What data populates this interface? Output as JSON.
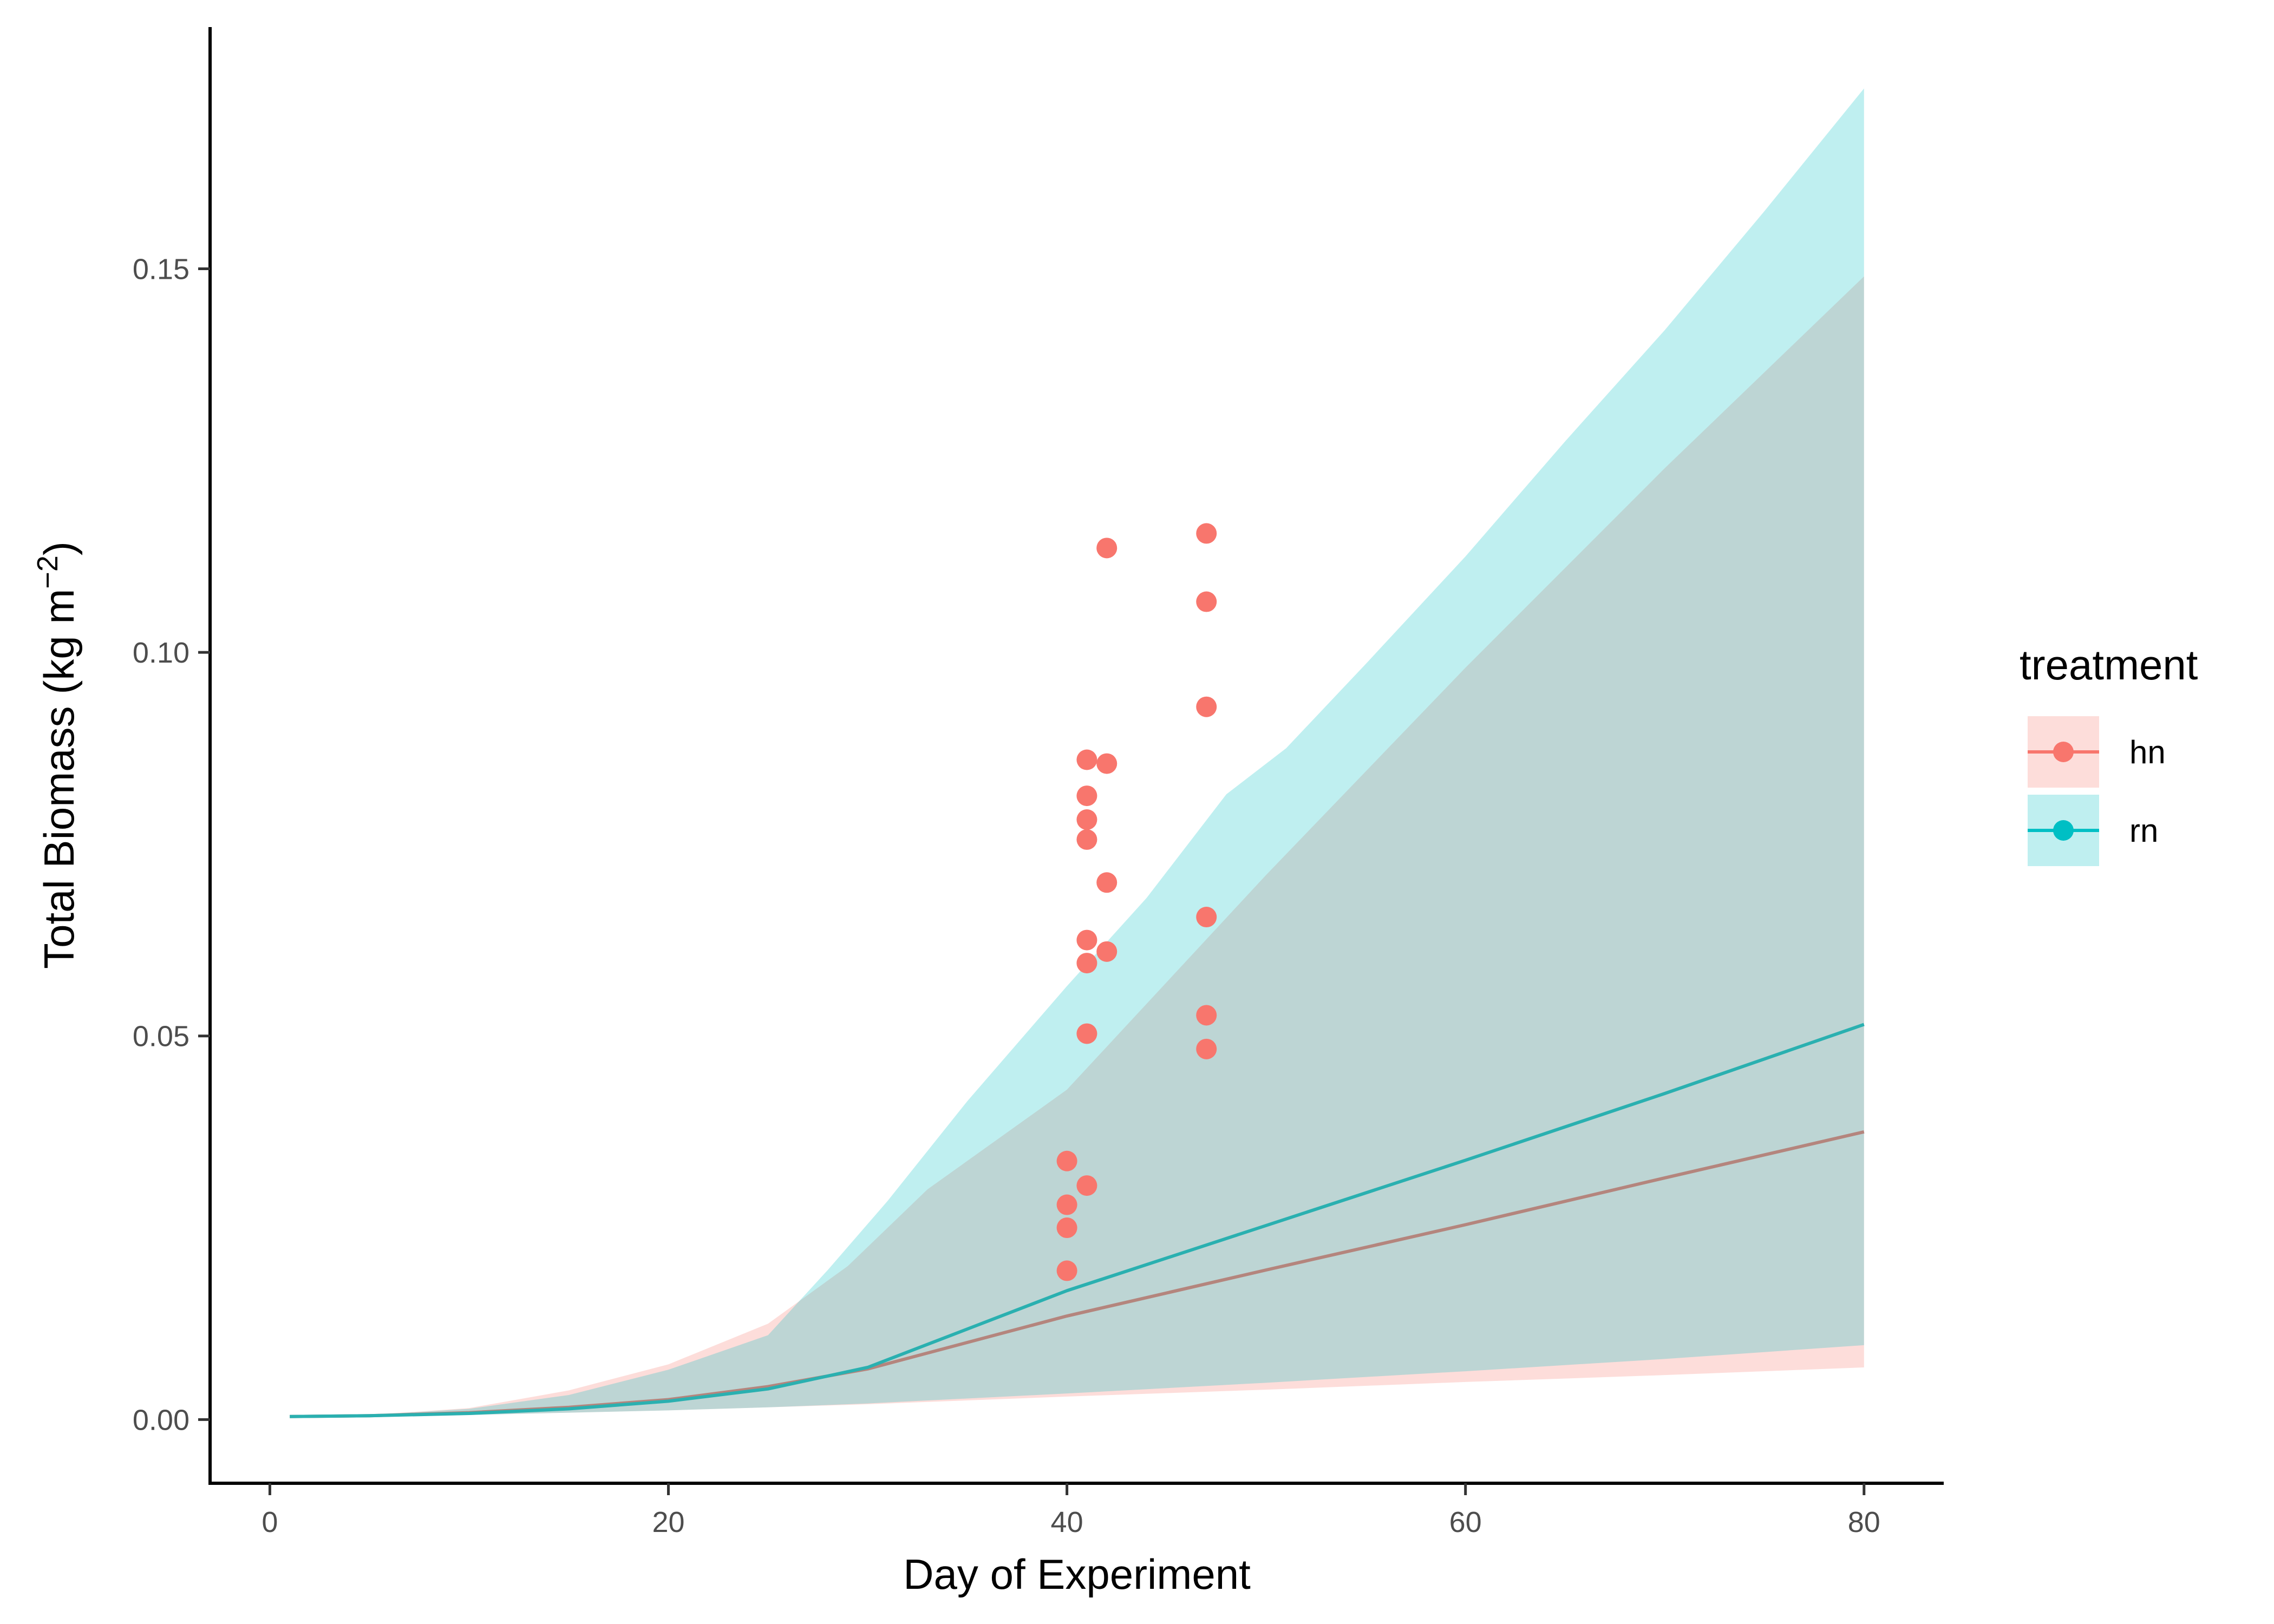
{
  "chart_data": {
    "type": "line",
    "xlabel": "Day of Experiment",
    "ylabel": "Total Biomass (kg m",
    "ylabel_sup": "−2",
    "ylabel_close": ")",
    "xlim": [
      -3,
      84
    ],
    "ylim": [
      -0.0083,
      0.1815
    ],
    "x_ticks": [
      0,
      20,
      40,
      60,
      80
    ],
    "x_tick_labels": [
      "0",
      "20",
      "40",
      "60",
      "80"
    ],
    "y_ticks": [
      0.0,
      0.05,
      0.1,
      0.15
    ],
    "y_tick_labels": [
      "0.00",
      "0.05",
      "0.10",
      "0.15"
    ],
    "grid": false,
    "legend": {
      "title": "treatment",
      "position": "right",
      "entries": [
        {
          "label": "hn",
          "line_color": "#F8766D",
          "fill_color": "#F8766D"
        },
        {
          "label": "rn",
          "line_color": "#00BFC4",
          "fill_color": "#00BFC4"
        }
      ]
    },
    "colors": {
      "hn": "#F8766D",
      "rn": "#00BFC4",
      "hn_line_on_overlap": "#B4857D",
      "rn_line": "#2AB0B0"
    },
    "series": [
      {
        "name": "hn",
        "line": [
          [
            1,
            0.0004
          ],
          [
            5,
            0.0005
          ],
          [
            10,
            0.0009
          ],
          [
            15,
            0.0016
          ],
          [
            20,
            0.0026
          ],
          [
            25,
            0.0043
          ],
          [
            30,
            0.0066
          ],
          [
            40,
            0.0135
          ],
          [
            50,
            0.0195
          ],
          [
            60,
            0.0254
          ],
          [
            70,
            0.0315
          ],
          [
            80,
            0.0375
          ]
        ],
        "band_upper": [
          [
            1,
            0.0004
          ],
          [
            5,
            0.0006
          ],
          [
            10,
            0.0015
          ],
          [
            15,
            0.0038
          ],
          [
            20,
            0.0072
          ],
          [
            25,
            0.0125
          ],
          [
            29,
            0.02
          ],
          [
            33,
            0.03
          ],
          [
            40,
            0.043
          ],
          [
            50,
            0.071
          ],
          [
            60,
            0.098
          ],
          [
            70,
            0.124
          ],
          [
            80,
            0.149
          ]
        ],
        "band_lower": [
          [
            1,
            0.0004
          ],
          [
            5,
            0.0004
          ],
          [
            10,
            0.0006
          ],
          [
            15,
            0.0009
          ],
          [
            20,
            0.0012
          ],
          [
            25,
            0.0016
          ],
          [
            30,
            0.002
          ],
          [
            40,
            0.003
          ],
          [
            50,
            0.0039
          ],
          [
            60,
            0.0049
          ],
          [
            70,
            0.0058
          ],
          [
            80,
            0.0068
          ]
        ],
        "points": [
          [
            40,
            0.0337
          ],
          [
            40,
            0.028
          ],
          [
            40,
            0.025
          ],
          [
            40,
            0.0194
          ],
          [
            41,
            0.086
          ],
          [
            41,
            0.0813
          ],
          [
            41,
            0.0782
          ],
          [
            41,
            0.0756
          ],
          [
            41,
            0.0625
          ],
          [
            41,
            0.0595
          ],
          [
            41,
            0.0503
          ],
          [
            41,
            0.0305
          ],
          [
            42,
            0.1136
          ],
          [
            42,
            0.0855
          ],
          [
            42,
            0.07
          ],
          [
            42,
            0.061
          ],
          [
            47,
            0.1155
          ],
          [
            47,
            0.1066
          ],
          [
            47,
            0.0929
          ],
          [
            47,
            0.0655
          ],
          [
            47,
            0.0527
          ],
          [
            47,
            0.0483
          ]
        ]
      },
      {
        "name": "rn",
        "line": [
          [
            1,
            0.0004
          ],
          [
            5,
            0.0005
          ],
          [
            10,
            0.0008
          ],
          [
            15,
            0.0014
          ],
          [
            20,
            0.0024
          ],
          [
            25,
            0.004
          ],
          [
            30,
            0.0068
          ],
          [
            35,
            0.0118
          ],
          [
            40,
            0.0168
          ],
          [
            50,
            0.0253
          ],
          [
            60,
            0.0338
          ],
          [
            70,
            0.0425
          ],
          [
            80,
            0.0515
          ]
        ],
        "band_upper": [
          [
            1,
            0.0004
          ],
          [
            5,
            0.0006
          ],
          [
            10,
            0.0014
          ],
          [
            15,
            0.0032
          ],
          [
            20,
            0.0065
          ],
          [
            25,
            0.011
          ],
          [
            28,
            0.0195
          ],
          [
            31,
            0.0285
          ],
          [
            35,
            0.0415
          ],
          [
            40,
            0.0565
          ],
          [
            44,
            0.068
          ],
          [
            48,
            0.0815
          ],
          [
            51,
            0.0875
          ],
          [
            55,
            0.0985
          ],
          [
            60,
            0.1125
          ],
          [
            65,
            0.1275
          ],
          [
            70,
            0.142
          ],
          [
            75,
            0.1575
          ],
          [
            80,
            0.1735
          ]
        ],
        "band_lower": [
          [
            1,
            0.0004
          ],
          [
            5,
            0.0004
          ],
          [
            10,
            0.0006
          ],
          [
            15,
            0.0009
          ],
          [
            20,
            0.0012
          ],
          [
            25,
            0.0016
          ],
          [
            30,
            0.0021
          ],
          [
            40,
            0.0034
          ],
          [
            50,
            0.0048
          ],
          [
            60,
            0.0063
          ],
          [
            70,
            0.0079
          ],
          [
            80,
            0.0097
          ]
        ]
      }
    ]
  }
}
